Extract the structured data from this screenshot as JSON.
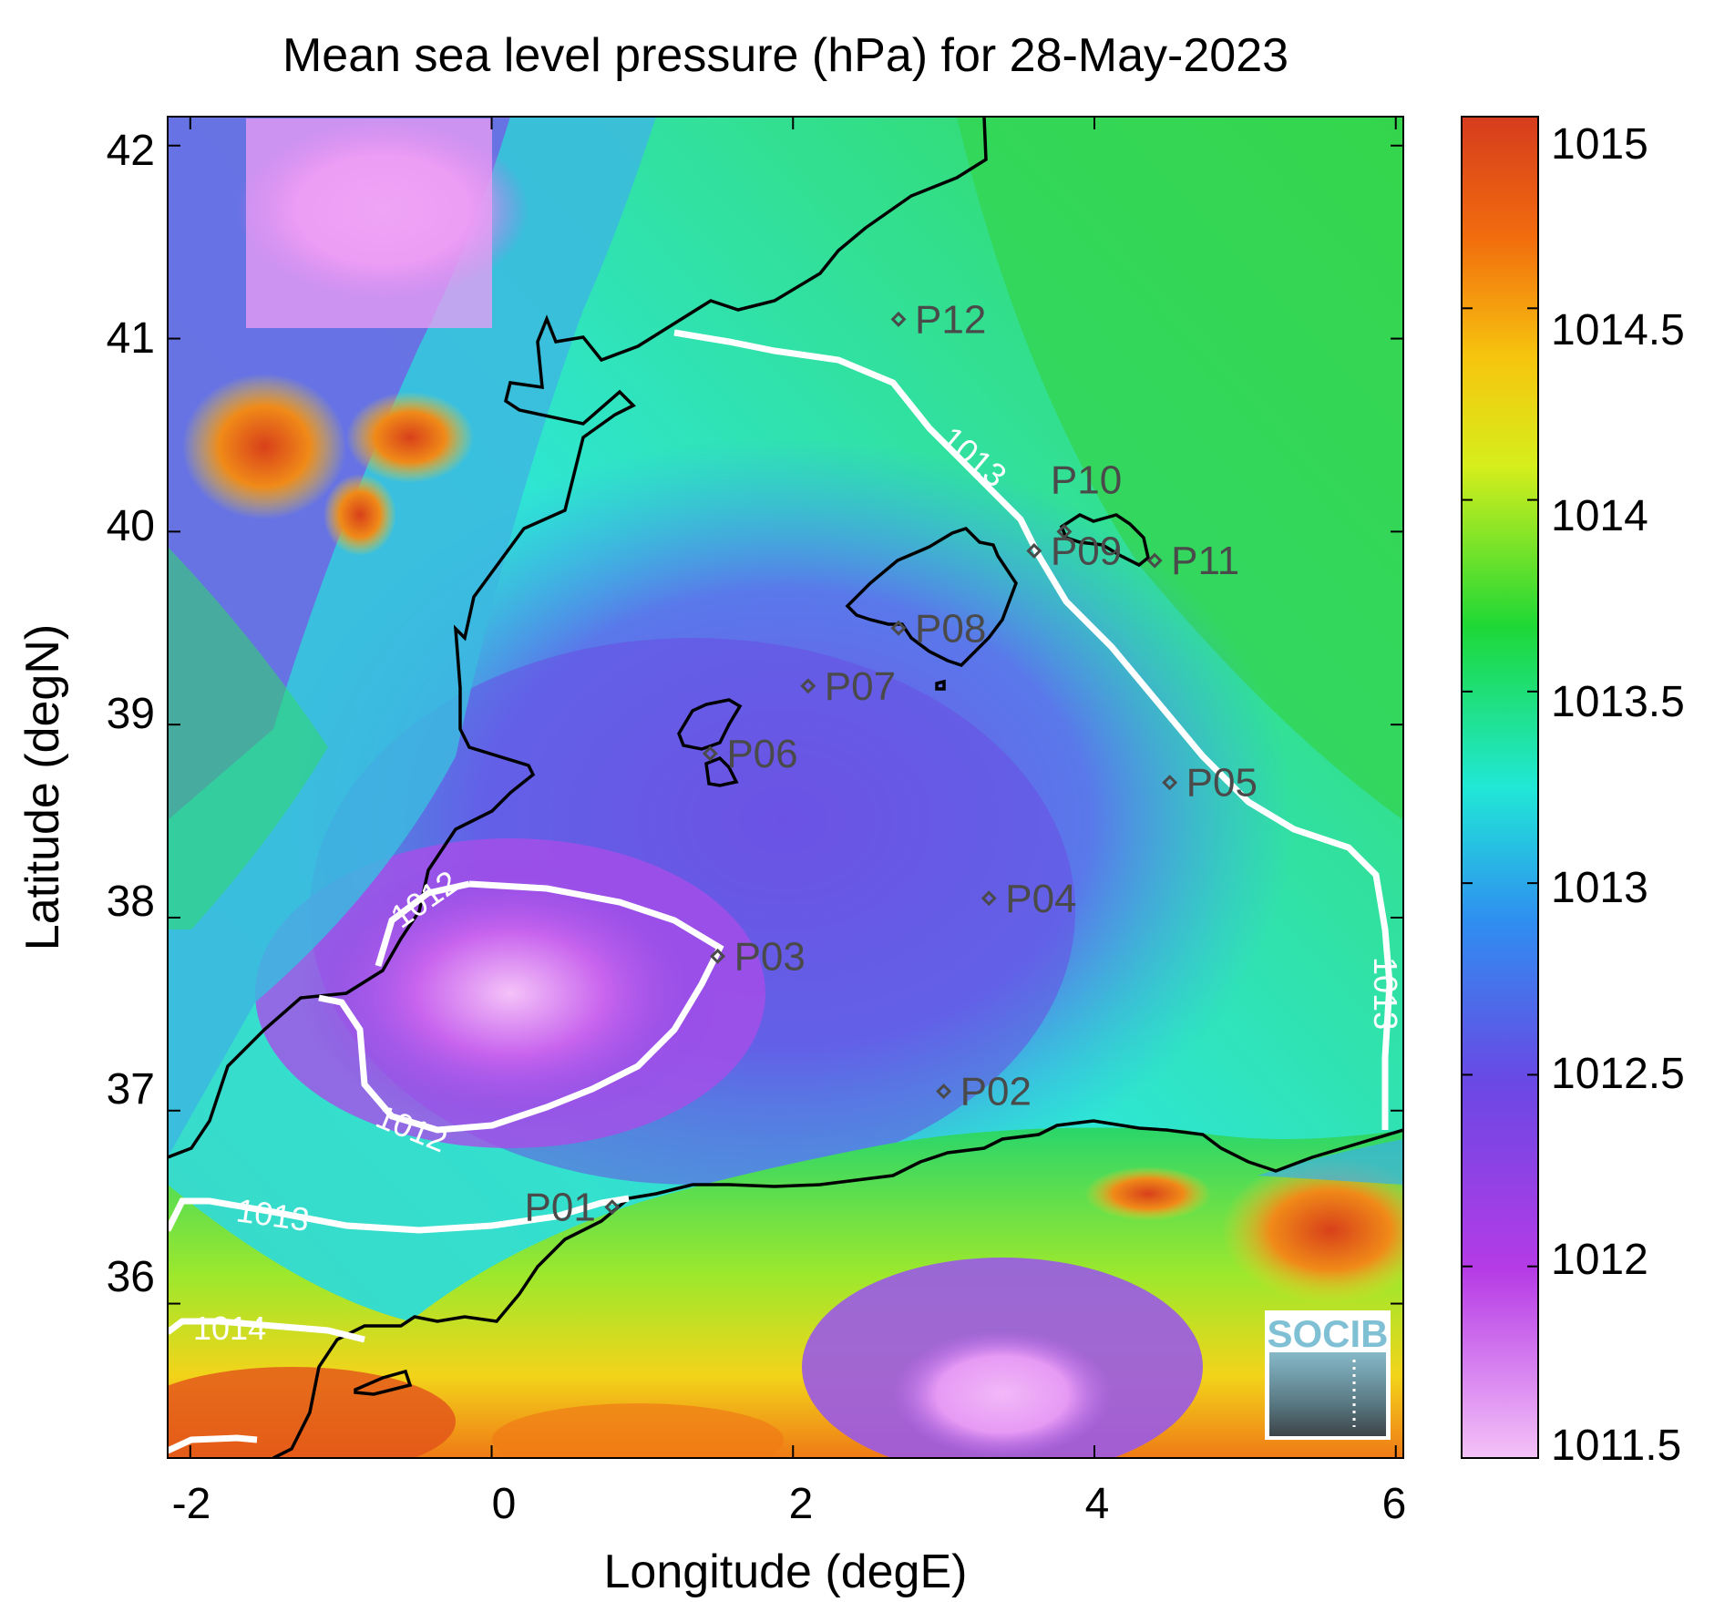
{
  "title": "Mean sea level pressure (hPa) for 28-May-2023",
  "xlabel": "Longitude (degE)",
  "ylabel": "Latitude (degN)",
  "x_ticks": [
    "-2",
    "0",
    "2",
    "4",
    "6"
  ],
  "y_ticks": [
    "42",
    "41",
    "40",
    "39",
    "38",
    "37",
    "36"
  ],
  "colorbar": {
    "ticks": [
      "1015",
      "1014.5",
      "1014",
      "1013.5",
      "1013",
      "1012.5",
      "1012",
      "1011.5"
    ],
    "range": [
      1011.5,
      1015
    ]
  },
  "contour_labels": [
    "1013",
    "1013",
    "1012",
    "1012",
    "1013",
    "1014"
  ],
  "stations": [
    {
      "id": "P01",
      "lon": 0.8,
      "lat": 36.5
    },
    {
      "id": "P02",
      "lon": 3.0,
      "lat": 37.1
    },
    {
      "id": "P03",
      "lon": 1.5,
      "lat": 37.8
    },
    {
      "id": "P04",
      "lon": 3.3,
      "lat": 38.1
    },
    {
      "id": "P05",
      "lon": 4.5,
      "lat": 38.7
    },
    {
      "id": "P06",
      "lon": 1.45,
      "lat": 38.85
    },
    {
      "id": "P07",
      "lon": 2.1,
      "lat": 39.2
    },
    {
      "id": "P08",
      "lon": 2.7,
      "lat": 39.5
    },
    {
      "id": "P09",
      "lon": 3.6,
      "lat": 39.9
    },
    {
      "id": "P10",
      "lon": 3.8,
      "lat": 40.0
    },
    {
      "id": "P11",
      "lon": 4.4,
      "lat": 39.85
    },
    {
      "id": "P12",
      "lon": 2.7,
      "lat": 41.1
    }
  ],
  "logo_text": "SOCIB",
  "colors": {
    "low": "#f2b7f7",
    "mid_low": "#7b45e0",
    "mid": "#2fe8d8",
    "mid_high": "#2ad63a",
    "high_mid": "#f2f21a",
    "high": "#e2451a",
    "contour": "#ffffff",
    "coast": "#000000",
    "station": "#4a4a4a"
  }
}
